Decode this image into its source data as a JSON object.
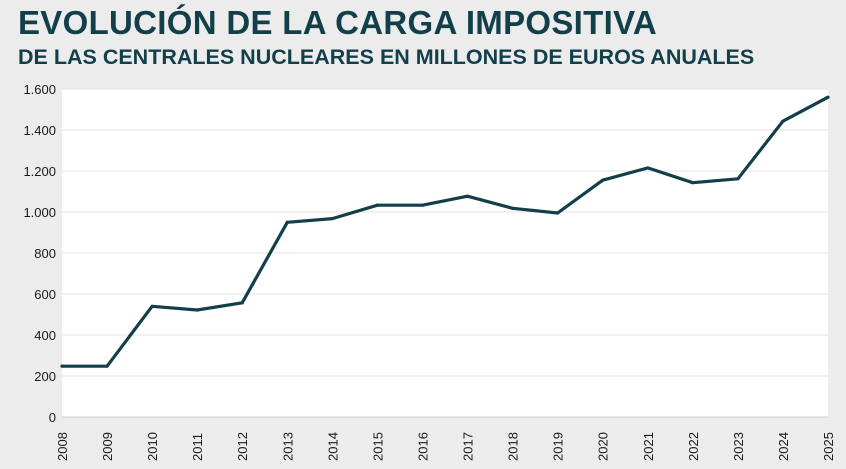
{
  "header": {
    "title": "EVOLUCIÓN DE LA CARGA IMPOSITIVA",
    "subtitle": "DE LAS CENTRALES NUCLEARES EN MILLONES DE EUROS ANUALES"
  },
  "colors": {
    "line": "#123f4a",
    "plot_background": "#ffffff",
    "page_background": "#ececec",
    "grid": "#e3e3e3"
  },
  "chart_data": {
    "type": "line",
    "title": "EVOLUCIÓN DE LA CARGA IMPOSITIVA",
    "subtitle": "DE LAS CENTRALES NUCLEARES EN MILLONES DE EUROS ANUALES",
    "xlabel": "",
    "ylabel": "",
    "categories": [
      "2008",
      "2009",
      "2010",
      "2011",
      "2012",
      "2013",
      "2014",
      "2015",
      "2016",
      "2017",
      "2018",
      "2019",
      "2020",
      "2021",
      "2022",
      "2023",
      "2024",
      "2025"
    ],
    "series": [
      {
        "name": "Carga impositiva",
        "values": [
          248,
          248,
          540,
          522,
          557,
          950,
          968,
          1033,
          1033,
          1077,
          1018,
          995,
          1155,
          1215,
          1143,
          1162,
          1443,
          1560
        ]
      }
    ],
    "ylim": [
      0,
      1600
    ],
    "yticks": [
      0,
      200,
      400,
      600,
      800,
      1000,
      1200,
      1400,
      1600
    ],
    "ytick_labels": [
      "0",
      "200",
      "400",
      "600",
      "800",
      "1.000",
      "1.200",
      "1.400",
      "1.600"
    ],
    "grid": true,
    "legend": "none"
  }
}
